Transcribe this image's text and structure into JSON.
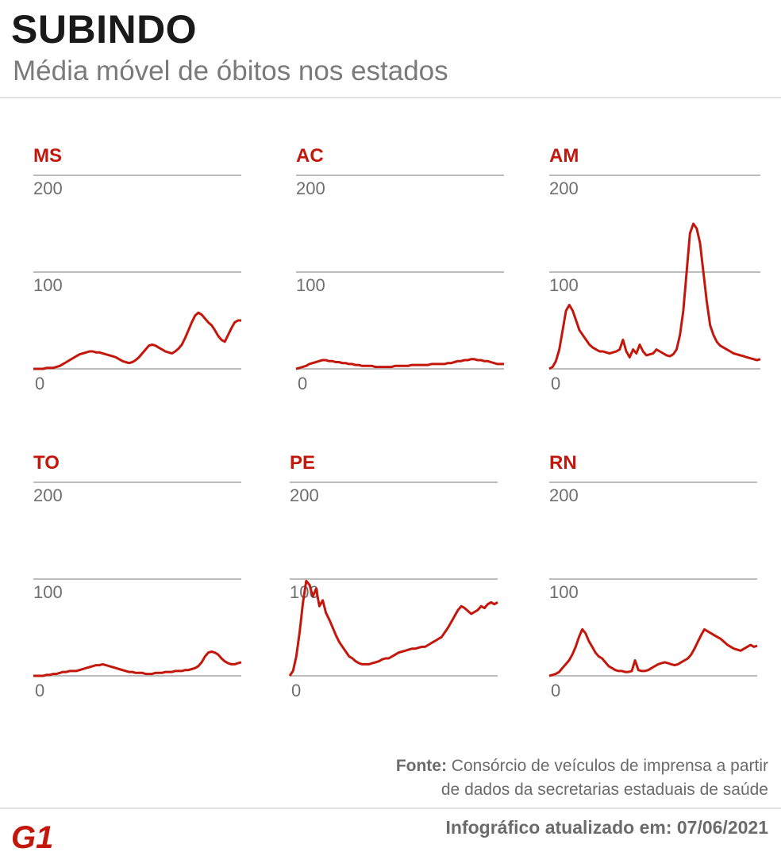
{
  "header": {
    "title": "SUBINDO",
    "subtitle": "Média móvel de óbitos nos estados"
  },
  "chart_data": [
    {
      "type": "line",
      "panel_title": "MS",
      "ylim": [
        0,
        200
      ],
      "yticks": [
        "200",
        "100",
        "0"
      ],
      "color": "#c4170c",
      "values": [
        0,
        0,
        0,
        0,
        1,
        1,
        1,
        2,
        3,
        5,
        7,
        9,
        11,
        13,
        15,
        16,
        17,
        18,
        18,
        17,
        17,
        16,
        15,
        14,
        13,
        12,
        10,
        8,
        7,
        6,
        7,
        9,
        12,
        16,
        20,
        24,
        25,
        24,
        22,
        20,
        18,
        17,
        16,
        18,
        21,
        25,
        32,
        40,
        48,
        55,
        58,
        56,
        52,
        48,
        45,
        40,
        34,
        30,
        28,
        35,
        42,
        48,
        50,
        50
      ]
    },
    {
      "type": "line",
      "panel_title": "AC",
      "ylim": [
        0,
        200
      ],
      "yticks": [
        "200",
        "100",
        "0"
      ],
      "color": "#c4170c",
      "values": [
        0,
        1,
        2,
        3,
        5,
        6,
        7,
        8,
        9,
        9,
        8,
        8,
        7,
        7,
        6,
        6,
        5,
        5,
        4,
        4,
        3,
        3,
        3,
        3,
        2,
        2,
        2,
        2,
        2,
        2,
        3,
        3,
        3,
        3,
        3,
        4,
        4,
        4,
        4,
        4,
        4,
        5,
        5,
        5,
        5,
        5,
        6,
        6,
        7,
        8,
        8,
        9,
        9,
        10,
        10,
        9,
        9,
        8,
        8,
        7,
        6,
        5,
        5,
        5
      ]
    },
    {
      "type": "line",
      "panel_title": "AM",
      "ylim": [
        0,
        200
      ],
      "yticks": [
        "200",
        "100",
        "0"
      ],
      "color": "#c4170c",
      "values": [
        0,
        2,
        8,
        20,
        40,
        60,
        66,
        60,
        50,
        40,
        35,
        30,
        25,
        22,
        20,
        18,
        18,
        17,
        16,
        17,
        18,
        20,
        30,
        18,
        12,
        20,
        16,
        25,
        18,
        14,
        15,
        16,
        20,
        18,
        16,
        14,
        13,
        15,
        20,
        35,
        60,
        100,
        140,
        150,
        145,
        130,
        100,
        70,
        45,
        35,
        28,
        24,
        22,
        20,
        18,
        16,
        15,
        14,
        13,
        12,
        11,
        10,
        9,
        10
      ]
    },
    {
      "type": "line",
      "panel_title": "TO",
      "ylim": [
        0,
        200
      ],
      "yticks": [
        "200",
        "100",
        "0"
      ],
      "color": "#c4170c",
      "values": [
        0,
        0,
        0,
        0,
        1,
        1,
        2,
        2,
        3,
        4,
        4,
        5,
        5,
        5,
        6,
        7,
        8,
        9,
        10,
        11,
        11,
        12,
        11,
        10,
        9,
        8,
        7,
        6,
        5,
        4,
        4,
        3,
        3,
        3,
        2,
        2,
        2,
        3,
        3,
        3,
        4,
        4,
        4,
        5,
        5,
        5,
        6,
        6,
        7,
        8,
        10,
        14,
        20,
        24,
        25,
        24,
        22,
        18,
        15,
        13,
        12,
        12,
        13,
        14
      ]
    },
    {
      "type": "line",
      "panel_title": "PE",
      "ylim": [
        0,
        200
      ],
      "yticks": [
        "200",
        "100",
        "0"
      ],
      "color": "#c4170c",
      "values": [
        0,
        5,
        20,
        45,
        75,
        98,
        94,
        82,
        90,
        72,
        78,
        65,
        58,
        50,
        42,
        35,
        30,
        25,
        20,
        18,
        15,
        13,
        12,
        12,
        12,
        13,
        14,
        15,
        17,
        18,
        18,
        20,
        22,
        24,
        25,
        26,
        27,
        28,
        28,
        29,
        30,
        30,
        32,
        34,
        36,
        38,
        40,
        45,
        50,
        56,
        62,
        68,
        72,
        70,
        67,
        64,
        66,
        68,
        72,
        70,
        74,
        76,
        74,
        76
      ]
    },
    {
      "type": "line",
      "panel_title": "RN",
      "ylim": [
        0,
        200
      ],
      "yticks": [
        "200",
        "100",
        "0"
      ],
      "color": "#c4170c",
      "values": [
        0,
        1,
        2,
        4,
        8,
        12,
        16,
        22,
        30,
        40,
        48,
        44,
        36,
        30,
        24,
        20,
        18,
        14,
        10,
        8,
        6,
        5,
        5,
        4,
        4,
        5,
        16,
        6,
        5,
        5,
        6,
        8,
        10,
        12,
        13,
        14,
        13,
        12,
        11,
        12,
        14,
        16,
        18,
        22,
        28,
        35,
        42,
        48,
        46,
        44,
        42,
        40,
        38,
        35,
        32,
        30,
        28,
        27,
        26,
        28,
        30,
        32,
        30,
        31
      ]
    }
  ],
  "footer": {
    "source_label": "Fonte:",
    "source_text": " Consórcio de veículos de imprensa a partir",
    "source_text2": "de dados da secretarias estaduais de saúde",
    "updated": "Infográfico atualizado em: 07/06/2021",
    "logo_text": "G1"
  }
}
